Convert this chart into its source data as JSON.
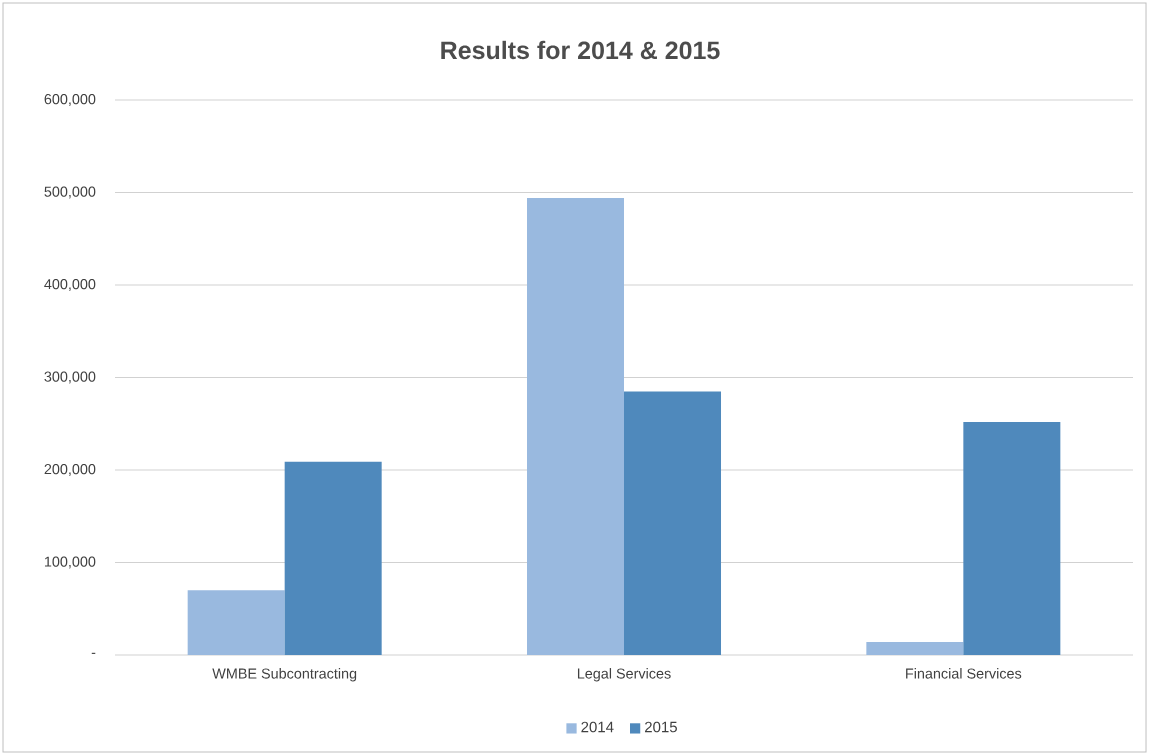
{
  "chart_data": {
    "type": "bar",
    "title": "Results for 2014 & 2015",
    "categories": [
      "WMBE Subcontracting",
      "Legal Services",
      "Financial Services"
    ],
    "series": [
      {
        "name": "2014",
        "color": "#99b9df",
        "values": [
          70000,
          494000,
          14000
        ]
      },
      {
        "name": "2015",
        "color": "#4f89bc",
        "values": [
          209000,
          285000,
          252000
        ]
      }
    ],
    "ylim": [
      0,
      600000
    ],
    "yticks": [
      {
        "value": 0,
        "label": "-"
      },
      {
        "value": 100000,
        "label": "100,000"
      },
      {
        "value": 200000,
        "label": "200,000"
      },
      {
        "value": 300000,
        "label": "300,000"
      },
      {
        "value": 400000,
        "label": "400,000"
      },
      {
        "value": 500000,
        "label": "500,000"
      },
      {
        "value": 600000,
        "label": "600,000"
      }
    ],
    "grid": "y",
    "legend": "bottom"
  }
}
